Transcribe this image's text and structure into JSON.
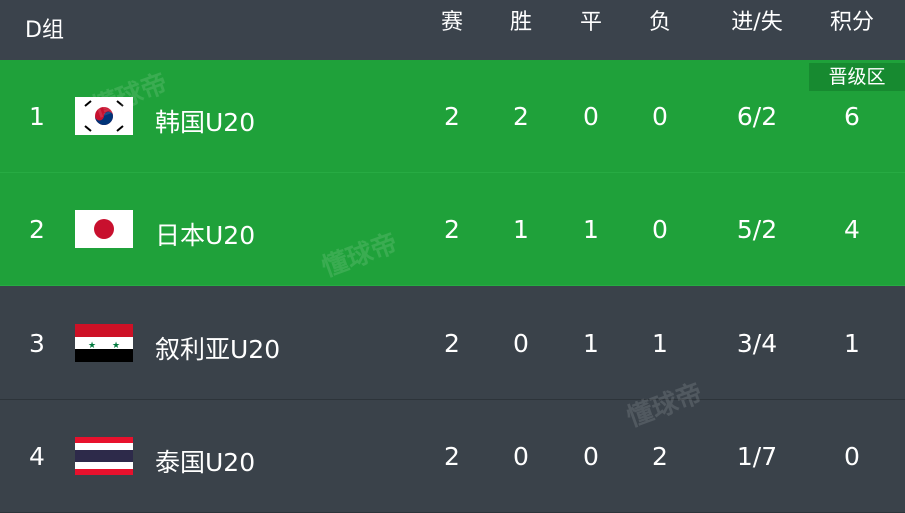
{
  "header": {
    "group": "D组",
    "columns": [
      "赛",
      "胜",
      "平",
      "负",
      "进/失",
      "积分"
    ]
  },
  "badge": "晋级区",
  "colors": {
    "header": "#3b434c",
    "qualified": "#1fa13a",
    "normal": "#3a424a"
  },
  "watermark": "懂球帝",
  "rows": [
    {
      "rank": "1",
      "flag": "korea-flag-icon",
      "name": "韩国U20",
      "played": "2",
      "won": "2",
      "drawn": "0",
      "lost": "0",
      "goals": "6/2",
      "points": "6",
      "qualified": true
    },
    {
      "rank": "2",
      "flag": "japan-flag-icon",
      "name": "日本U20",
      "played": "2",
      "won": "1",
      "drawn": "1",
      "lost": "0",
      "goals": "5/2",
      "points": "4",
      "qualified": true
    },
    {
      "rank": "3",
      "flag": "syria-flag-icon",
      "name": "叙利亚U20",
      "played": "2",
      "won": "0",
      "drawn": "1",
      "lost": "1",
      "goals": "3/4",
      "points": "1",
      "qualified": false
    },
    {
      "rank": "4",
      "flag": "thailand-flag-icon",
      "name": "泰国U20",
      "played": "2",
      "won": "0",
      "drawn": "0",
      "lost": "2",
      "goals": "1/7",
      "points": "0",
      "qualified": false
    }
  ]
}
